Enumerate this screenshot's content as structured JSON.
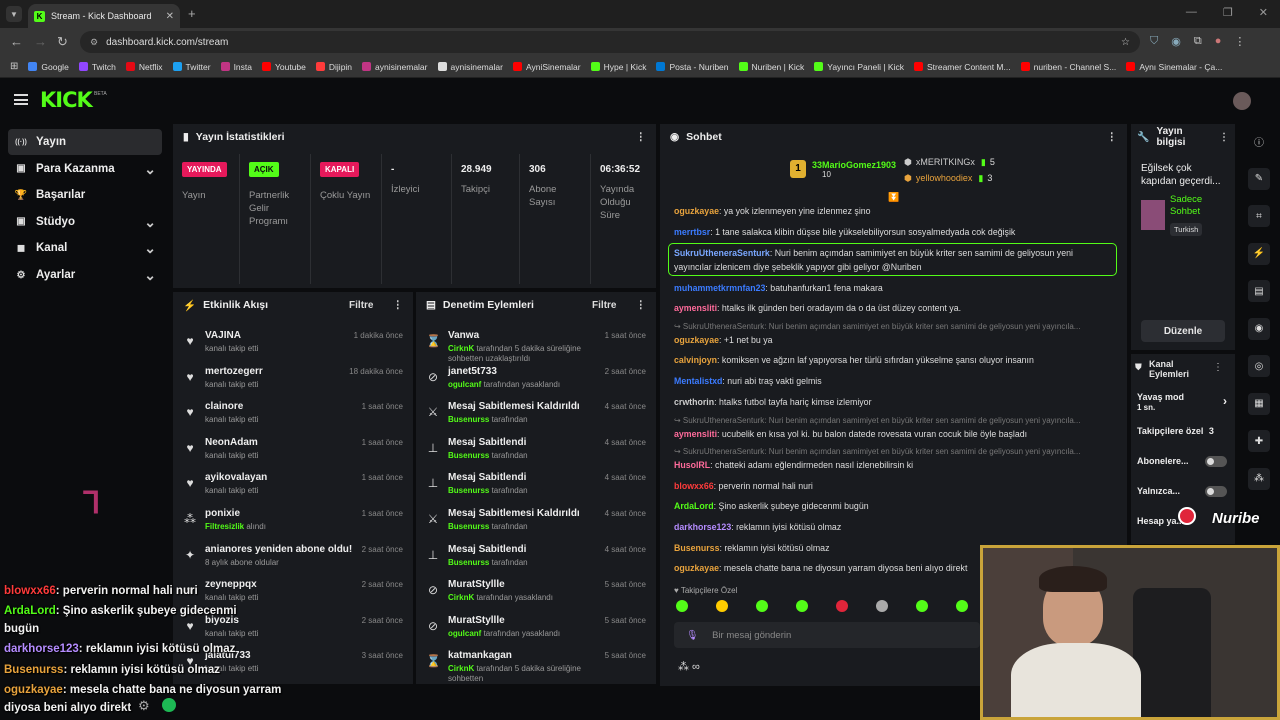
{
  "browser": {
    "tab_title": "Stream - Kick Dashboard",
    "url": "dashboard.kick.com/stream",
    "bookmarks": [
      {
        "label": "Google",
        "color": "#4285f4"
      },
      {
        "label": "Twitch",
        "color": "#9146ff"
      },
      {
        "label": "Netflix",
        "color": "#e50914"
      },
      {
        "label": "Twitter",
        "color": "#1da1f2"
      },
      {
        "label": "Insta",
        "color": "#c13584"
      },
      {
        "label": "Youtube",
        "color": "#ff0000"
      },
      {
        "label": "Dijipin",
        "color": "#ff3b3b"
      },
      {
        "label": "aynisinemalar",
        "color": "#c13584"
      },
      {
        "label": "aynisinemalar",
        "color": "#dddddd"
      },
      {
        "label": "AyniSinemalar",
        "color": "#ff0000"
      },
      {
        "label": "Hype | Kick",
        "color": "#53fc18"
      },
      {
        "label": "Posta - Nuriben",
        "color": "#0078d4"
      },
      {
        "label": "Nuriben | Kick",
        "color": "#53fc18"
      },
      {
        "label": "Yayıncı Paneli | Kick",
        "color": "#53fc18"
      },
      {
        "label": "Streamer Content M...",
        "color": "#ff0000"
      },
      {
        "label": "nuriben - Channel S...",
        "color": "#ff0000"
      },
      {
        "label": "Aynı Sinemalar - Ça...",
        "color": "#ff0000"
      }
    ]
  },
  "sidebar": {
    "items": [
      {
        "label": "Yayın",
        "icon": "broadcast-icon",
        "chevron": false,
        "active": true
      },
      {
        "label": "Para Kazanma",
        "icon": "money-icon",
        "chevron": true
      },
      {
        "label": "Başarılar",
        "icon": "trophy-icon",
        "chevron": false
      },
      {
        "label": "Stüdyo",
        "icon": "studio-icon",
        "chevron": true
      },
      {
        "label": "Kanal",
        "icon": "user-icon",
        "chevron": true
      },
      {
        "label": "Ayarlar",
        "icon": "gear-icon",
        "chevron": true
      }
    ]
  },
  "stats": {
    "title": "Yayın İstatistikleri",
    "cols": [
      {
        "badge": "YAYINDA",
        "badge_bg": "#e6195b",
        "badge_fg": "#ffffff",
        "label": "Yayın"
      },
      {
        "badge": "AÇIK",
        "badge_bg": "#53fc18",
        "badge_fg": "#0b0c0e",
        "label": "Partnerlik Gelir Programı"
      },
      {
        "badge": "KAPALI",
        "badge_bg": "#e6195b",
        "badge_fg": "#ffffff",
        "label": "Çoklu Yayın"
      },
      {
        "value": "-",
        "label": "İzleyici"
      },
      {
        "value": "28.949",
        "label": "Takipçi"
      },
      {
        "value": "306",
        "label": "Abone Sayısı"
      },
      {
        "value": "06:36:52",
        "label": "Yayında Olduğu Süre"
      }
    ]
  },
  "activity": {
    "title": "Etkinlik Akışı",
    "filter": "Filtre",
    "rows": [
      {
        "name": "VAJINA",
        "sub": "kanalı takip etti",
        "time": "1 dakika önce",
        "icon": "heart-icon"
      },
      {
        "name": "mertozegerr",
        "sub": "kanalı takip etti",
        "time": "18 dakika önce",
        "icon": "heart-icon"
      },
      {
        "name": "clainore",
        "sub": "kanalı takip etti",
        "time": "1 saat önce",
        "icon": "heart-icon"
      },
      {
        "name": "NeonAdam",
        "sub": "kanalı takip etti",
        "time": "1 saat önce",
        "icon": "heart-icon"
      },
      {
        "name": "ayikovalayan",
        "sub": "kanalı takip etti",
        "time": "1 saat önce",
        "icon": "heart-icon"
      },
      {
        "name": "ponixie",
        "sub_hl": "Filtresizlik",
        "sub": " alındı",
        "time": "1 saat önce",
        "icon": "reward-icon"
      },
      {
        "name": "anianores yeniden abone oldu!",
        "sub": "8 aylık abone oldular",
        "time": "2 saat önce",
        "icon": "star-icon"
      },
      {
        "name": "zeyneppqx",
        "sub": "kanalı takip etti",
        "time": "2 saat önce",
        "icon": "heart-icon"
      },
      {
        "name": "biyozis",
        "sub": "kanalı takip etti",
        "time": "2 saat önce",
        "icon": "heart-icon"
      },
      {
        "name": "jalatul733",
        "sub": "kanalı takip etti",
        "time": "3 saat önce",
        "icon": "heart-icon"
      }
    ]
  },
  "moderation": {
    "title": "Denetim Eylemleri",
    "filter": "Filtre",
    "rows": [
      {
        "name": "Vanwa",
        "sub_hl": "CirknK",
        "sub": " tarafından 5 dakika süreliğine sohbetten uzaklaştırıldı",
        "time": "1 saat önce",
        "icon": "timer-icon"
      },
      {
        "name": "janet5t733",
        "sub_hl": "ogulcanf",
        "sub": " tarafından yasaklandı",
        "time": "2 saat önce",
        "icon": "ban-icon"
      },
      {
        "name": "Mesaj Sabitlemesi Kaldırıldı",
        "sub_hl": "Busenurss",
        "sub": " tarafından",
        "time": "4 saat önce",
        "icon": "unpin-icon"
      },
      {
        "name": "Mesaj Sabitlendi",
        "sub_hl": "Busenurss",
        "sub": " tarafından",
        "time": "4 saat önce",
        "icon": "pin-icon"
      },
      {
        "name": "Mesaj Sabitlendi",
        "sub_hl": "Busenurss",
        "sub": " tarafından",
        "time": "4 saat önce",
        "icon": "pin-icon"
      },
      {
        "name": "Mesaj Sabitlemesi Kaldırıldı",
        "sub_hl": "Busenurss",
        "sub": " tarafından",
        "time": "4 saat önce",
        "icon": "unpin-icon"
      },
      {
        "name": "Mesaj Sabitlendi",
        "sub_hl": "Busenurss",
        "sub": " tarafından",
        "time": "4 saat önce",
        "icon": "pin-icon"
      },
      {
        "name": "MuratStyllle",
        "sub_hl": "CirknK",
        "sub": " tarafından yasaklandı",
        "time": "5 saat önce",
        "icon": "ban-icon"
      },
      {
        "name": "MuratStyllle",
        "sub_hl": "ogulcanf",
        "sub": " tarafından yasaklandı",
        "time": "5 saat önce",
        "icon": "ban-icon"
      },
      {
        "name": "katmankagan",
        "sub_hl": "CirknK",
        "sub": " tarafından 5 dakika süreliğine sohbetten",
        "time": "5 saat önce",
        "icon": "timer-icon"
      }
    ]
  },
  "chat": {
    "title": "Sohbet",
    "top_gifters": [
      {
        "name": "33MarioGomez1903",
        "count": "10",
        "color": "#53fc18"
      },
      {
        "name": "xMERITKINGx",
        "count": "5",
        "color": "#cccccc"
      },
      {
        "name": "yellowhoodiex",
        "count": "3",
        "color": "#e8a33d"
      }
    ],
    "messages": [
      {
        "user": "oguzkayae",
        "color": "#e8a33d",
        "text": ": ya yok izlenmeyen yine izlenmez şino"
      },
      {
        "user": "merrtbsr",
        "color": "#3b7bff",
        "text": ": 1 tane salakca klibin düşse bile yükselebiliyorsun sosyalmedyada cok değişik"
      },
      {
        "user": "SukruUtheneraSenturk",
        "color": "#7aa7ff",
        "text": ": Nuri benim açımdan samimiyet en büyük kriter sen samimi de geliyosun yeni"
      },
      {
        "user": "",
        "color": "#dddddd",
        "text": "yayıncılar izlenicem diye şebeklik yapıyor gibi geliyor @Nuriben"
      },
      {
        "user": "muhammetkrmnfan23",
        "color": "#3b7bff",
        "text": ": batuhanfurkan1 fena makara"
      },
      {
        "user": "aymensliti",
        "color": "#ff6b9b",
        "text": ": htalks ilk günden beri oradayım da o da üst düzey content ya."
      },
      {
        "user": "↪ SukruUtheneraSenturk",
        "color": "#777777",
        "text": ": Nuri benim açımdan samimiyet en büyük kriter sen samimi de geliyosun yeni yayıncıla...",
        "dim": true
      },
      {
        "user": "oguzkayae",
        "color": "#e8a33d",
        "text": ": +1 net bu ya"
      },
      {
        "user": "calvinjoyn",
        "color": "#e8a33d",
        "text": ": komiksen ve ağzın laf yapıyorsa her türlü sıfırdan yükselme şansı oluyor insanın"
      },
      {
        "user": "Mentalistxd",
        "color": "#3b7bff",
        "text": ": nuri abi traş vakti gelmis"
      },
      {
        "user": "crwthorin",
        "color": "#cccccc",
        "text": ": htalks futbol tayfa hariç kimse izlemiyor"
      },
      {
        "user": "↪ SukruUtheneraSenturk",
        "color": "#777777",
        "text": ": Nuri benim açımdan samimiyet en büyük kriter sen samimi de geliyosun yeni yayıncıla...",
        "dim": true
      },
      {
        "user": "aymensliti",
        "color": "#ff6b9b",
        "text": ": ucubelik en kısa yol ki. bu balon datede rovesata vuran cocuk bile öyle başladı"
      },
      {
        "user": "↪ SukruUtheneraSenturk",
        "color": "#777777",
        "text": ": Nuri benim açımdan samimiyet en büyük kriter sen samimi de geliyosun yeni yayıncıla...",
        "dim": true
      },
      {
        "user": "HusolRL",
        "color": "#ff6b9b",
        "text": ": chatteki adamı eğlendirmeden nasıl izlenebilirsin ki"
      },
      {
        "user": "blowxx66",
        "color": "#ff3b3b",
        "text": ": perverin normal hali nuri"
      },
      {
        "user": "ArdaLord",
        "color": "#53fc18",
        "text": ": Şino askerlik şubeye gidecenmi bugün"
      },
      {
        "user": "darkhorse123",
        "color": "#b58cff",
        "text": ": reklamın iyisi kötüsü olmaz"
      },
      {
        "user": "Busenurss",
        "color": "#e8a33d",
        "text": ": reklamın iyisi kötüsü olmaz"
      },
      {
        "user": "oguzkayae",
        "color": "#e8a33d",
        "text": ": mesela chatte bana ne diyosun yarram diyosa beni alıyo direkt"
      }
    ],
    "followers_only": "Takipçilere Özel",
    "input_placeholder": "Bir mesaj gönderin"
  },
  "info": {
    "title": "Yayın bilgisi",
    "stream_title": "Eğilsek çok kapıdan geçerdi...",
    "category": "Sadece Sohbet",
    "language": "Turkish",
    "edit_button": "Düzenle"
  },
  "channel_actions": {
    "title": "Kanal Eylemleri",
    "slow_mode": "Yavaş mod",
    "slow_mode_value": "1 sn.",
    "followers": "Takipçilere özel",
    "followers_value": "3",
    "subscribers": "Abonelere...",
    "only": "Yalnızca...",
    "account": "Hesap ya..."
  },
  "overlay": {
    "lines": [
      {
        "user": "blowxx66",
        "color": "#ff3b3b",
        "text": ": perverin normal hali nuri"
      },
      {
        "user": "ArdaLord",
        "color": "#53fc18",
        "text": ": Şino askerlik şubeye gidecenmi"
      },
      {
        "user": "",
        "color": "#ffffff",
        "text": "bugün"
      },
      {
        "user": "darkhorse123",
        "color": "#b58cff",
        "text": ": reklamın iyisi kötüsü olmaz"
      },
      {
        "user": "Busenurss",
        "color": "#e8a33d",
        "text": ": reklamın iyisi kötüsü olmaz"
      },
      {
        "user": "oguzkayae",
        "color": "#e8a33d",
        "text": ": mesela chatte bana ne diyosun yarram"
      },
      {
        "user": "",
        "color": "#ffffff",
        "text": "diyosa beni alıyo direkt"
      }
    ],
    "watermark": "Nuribe"
  }
}
